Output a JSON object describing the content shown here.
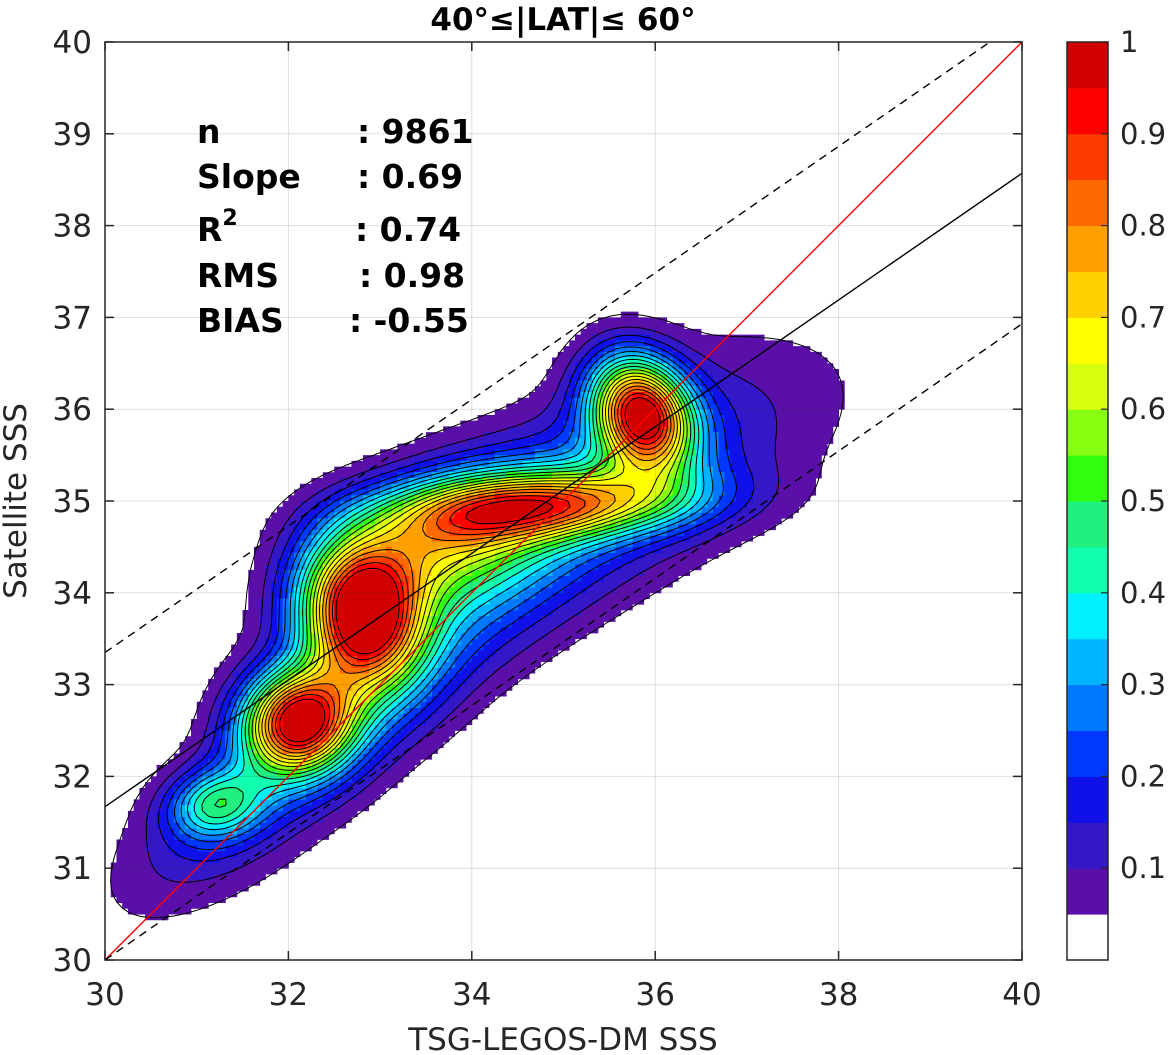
{
  "chart_data": {
    "type": "contour",
    "title": "40°≤|LAT|≤ 60°",
    "xlabel": "TSG-LEGOS-DM SSS",
    "ylabel": "Satellite SSS",
    "xlim": [
      30,
      40
    ],
    "ylim": [
      30,
      40
    ],
    "xticks": [
      30,
      32,
      34,
      36,
      38,
      40
    ],
    "yticks": [
      30,
      31,
      32,
      33,
      34,
      35,
      36,
      37,
      38,
      39,
      40
    ],
    "grid": true,
    "stats": [
      {
        "label": "n",
        "value": ": 9861"
      },
      {
        "label": "Slope",
        "value": ": 0.69"
      },
      {
        "label": "R",
        "sup": "2",
        "value": ": 0.74"
      },
      {
        "label": "RMS",
        "value": ": 0.98"
      },
      {
        "label": "BIAS",
        "value": ": -0.55"
      }
    ],
    "lines": [
      {
        "name": "identity",
        "color": "#ff0000",
        "style": "solid",
        "points": [
          [
            30,
            30
          ],
          [
            40,
            40
          ]
        ]
      },
      {
        "name": "regression",
        "color": "#000000",
        "style": "solid",
        "points": [
          [
            30,
            31.67
          ],
          [
            40,
            38.57
          ]
        ]
      },
      {
        "name": "upper-bound",
        "color": "#000000",
        "style": "dashed",
        "points": [
          [
            30,
            33.35
          ],
          [
            39.65,
            40
          ]
        ]
      },
      {
        "name": "lower-bound",
        "color": "#000000",
        "style": "dashed",
        "points": [
          [
            30,
            30
          ],
          [
            40,
            36.93
          ]
        ]
      }
    ],
    "colorbar": {
      "ticks": [
        "0.1",
        "0.2",
        "0.3",
        "0.4",
        "0.5",
        "0.6",
        "0.7",
        "0.8",
        "0.9",
        "1"
      ],
      "tick_values": [
        0.1,
        0.2,
        0.3,
        0.4,
        0.5,
        0.6,
        0.7,
        0.8,
        0.9,
        1.0
      ],
      "range": [
        0,
        1
      ],
      "levels": [
        0,
        0.05,
        0.1,
        0.15,
        0.2,
        0.25,
        0.3,
        0.35,
        0.4,
        0.45,
        0.5,
        0.55,
        0.6,
        0.65,
        0.7,
        0.75,
        0.8,
        0.85,
        0.9,
        0.95,
        1.0
      ],
      "colors": [
        "#ffffff",
        "#5a10a8",
        "#3418c8",
        "#1010e8",
        "#0038ff",
        "#0078ff",
        "#00b4ff",
        "#00f0ff",
        "#10ffb0",
        "#20f080",
        "#30ff10",
        "#88ff10",
        "#d8ff10",
        "#ffff00",
        "#ffd000",
        "#ffa000",
        "#ff6a00",
        "#ff3c00",
        "#ff0000",
        "#d00000",
        "#900000"
      ]
    },
    "density_peaks": [
      {
        "x": 32.8,
        "y": 33.75,
        "sx": 0.45,
        "sy": 0.55,
        "amp": 0.93,
        "rot": 0.2
      },
      {
        "x": 32.1,
        "y": 32.6,
        "sx": 0.42,
        "sy": 0.38,
        "amp": 0.88,
        "rot": 0.3
      },
      {
        "x": 35.85,
        "y": 35.95,
        "sx": 0.35,
        "sy": 0.45,
        "amp": 0.9,
        "rot": 0.5
      },
      {
        "x": 34.8,
        "y": 34.95,
        "sx": 1.1,
        "sy": 0.25,
        "amp": 0.55,
        "rot": 0.05
      },
      {
        "x": 31.2,
        "y": 31.7,
        "sx": 0.35,
        "sy": 0.25,
        "amp": 0.32,
        "rot": 0.2
      },
      {
        "x": 33.6,
        "y": 34.6,
        "sx": 0.8,
        "sy": 0.45,
        "amp": 0.42,
        "rot": 0.3
      },
      {
        "x": 33.3,
        "y": 33.3,
        "sx": 1.9,
        "sy": 0.55,
        "amp": 0.18,
        "rot": 0.72
      },
      {
        "x": 35.2,
        "y": 35.0,
        "sx": 1.8,
        "sy": 0.7,
        "amp": 0.22,
        "rot": 0.45
      },
      {
        "x": 31.4,
        "y": 31.6,
        "sx": 1.0,
        "sy": 0.45,
        "amp": 0.12,
        "rot": 0.65
      }
    ]
  }
}
